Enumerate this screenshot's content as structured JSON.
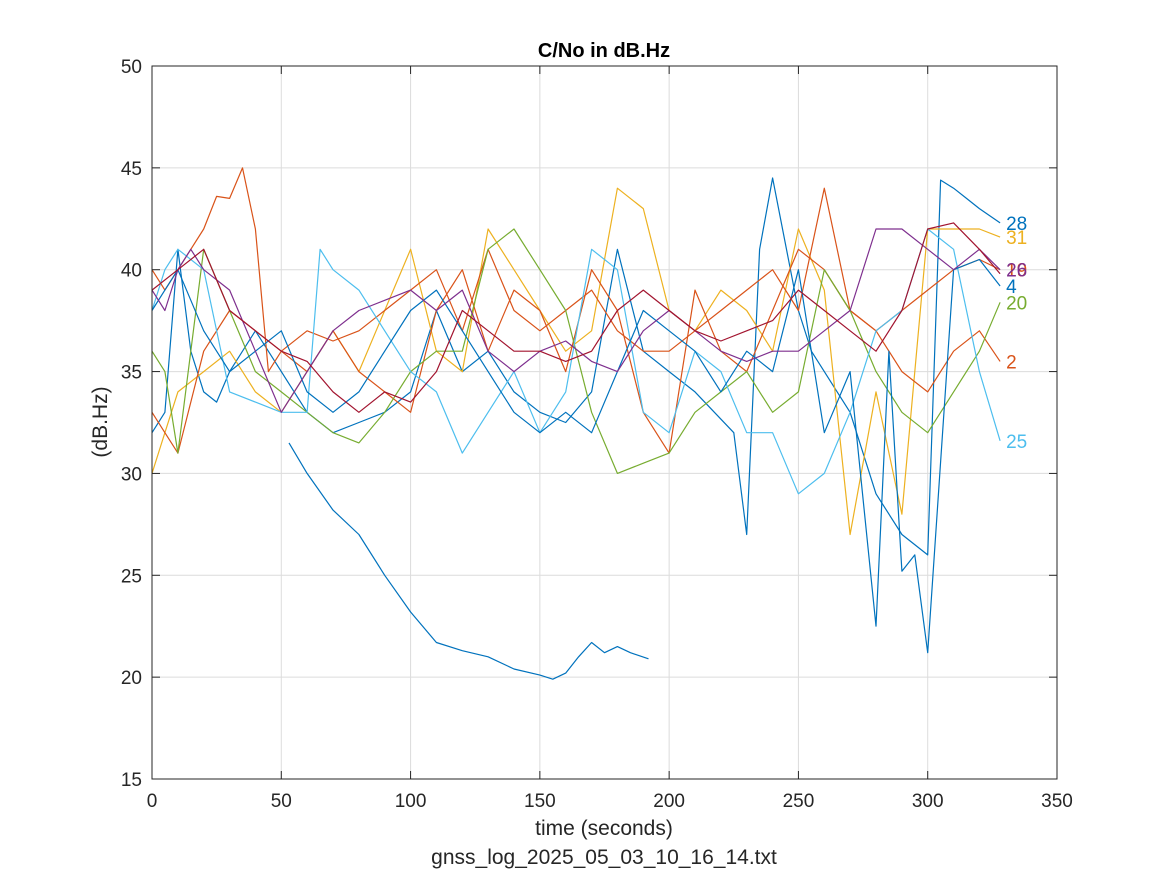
{
  "chart_data": {
    "type": "line",
    "title": "C/No in dB.Hz",
    "xlabel": "time (seconds)",
    "ylabel": "(dB.Hz)",
    "footer": "gnss_log_2025_05_03_10_16_14.txt",
    "xlim": [
      0,
      350
    ],
    "ylim": [
      15,
      50
    ],
    "xticks": [
      0,
      50,
      100,
      150,
      200,
      250,
      300,
      350
    ],
    "yticks": [
      15,
      20,
      25,
      30,
      35,
      40,
      45,
      50
    ],
    "xtick_labels": [
      "0",
      "50",
      "100",
      "150",
      "200",
      "250",
      "300",
      "350"
    ],
    "ytick_labels": [
      "15",
      "20",
      "25",
      "30",
      "35",
      "40",
      "45",
      "50"
    ],
    "grid": true,
    "series": [
      {
        "name": "28",
        "color": "#0072BD",
        "x": [
          0,
          5,
          10,
          15,
          20,
          25,
          30,
          40,
          50,
          60,
          70,
          80,
          90,
          100,
          110,
          120,
          130,
          140,
          150,
          160,
          170,
          180,
          190,
          200,
          210,
          225,
          230,
          235,
          240,
          250,
          255,
          260,
          270,
          280,
          290,
          300,
          305,
          310,
          315,
          320,
          328
        ],
        "y": [
          32,
          33,
          41,
          36,
          34,
          33.5,
          35,
          37,
          35,
          33,
          32,
          32.5,
          33,
          34,
          38,
          35,
          36,
          34,
          33,
          32.5,
          34,
          41,
          36,
          35,
          34,
          32,
          27,
          41,
          44.5,
          38,
          36,
          35,
          33,
          29,
          27,
          26,
          44.4,
          44,
          43.5,
          43,
          42.3
        ]
      },
      {
        "name": "",
        "color": "#0072BD",
        "x": [
          53,
          60,
          70,
          80,
          90,
          100,
          110,
          120,
          130,
          140,
          150,
          155,
          160,
          165,
          170,
          175,
          180,
          185,
          192
        ],
        "y": [
          31.5,
          30,
          28.2,
          27,
          25,
          23.2,
          21.7,
          21.3,
          21,
          20.4,
          20.1,
          19.9,
          20.2,
          21,
          21.7,
          21.2,
          21.5,
          21.2,
          20.9
        ]
      },
      {
        "name": "31",
        "color": "#EDB120",
        "x": [
          0,
          5,
          10,
          20,
          30,
          40,
          50,
          60,
          70,
          80,
          90,
          100,
          110,
          120,
          130,
          140,
          150,
          160,
          170,
          180,
          190,
          200,
          210,
          220,
          230,
          240,
          250,
          260,
          270,
          280,
          290,
          300,
          310,
          320,
          328
        ],
        "y": [
          30,
          32,
          34,
          35,
          36,
          34,
          33,
          35,
          37,
          35,
          38,
          41,
          36,
          35,
          42,
          40,
          38,
          36,
          37,
          44,
          43,
          38,
          37,
          39,
          38,
          36,
          42,
          39,
          27,
          34,
          28,
          42,
          42,
          42,
          41.6
        ]
      },
      {
        "name": "19",
        "color": "#D95319",
        "x": [
          0,
          5,
          10,
          15,
          20,
          25,
          30,
          35,
          40,
          45,
          50,
          60,
          70,
          80,
          90,
          100,
          110,
          120,
          130,
          140,
          150,
          160,
          170,
          180,
          190,
          200,
          210,
          220,
          230,
          240,
          250,
          260,
          270,
          280,
          290,
          300,
          310,
          320,
          328
        ],
        "y": [
          40,
          39,
          40,
          41,
          42,
          43.6,
          43.5,
          45,
          42,
          35,
          36,
          37,
          36.5,
          37,
          38,
          39,
          40,
          37,
          41,
          38,
          37,
          38,
          39,
          37,
          36,
          36,
          37,
          38,
          39,
          40,
          38,
          44,
          38,
          37,
          38,
          39,
          40,
          40.5,
          40
        ]
      },
      {
        "name": "2",
        "color": "#D95319",
        "x": [
          0,
          5,
          10,
          20,
          30,
          40,
          50,
          60,
          70,
          80,
          90,
          100,
          110,
          120,
          130,
          140,
          150,
          160,
          170,
          180,
          190,
          200,
          210,
          220,
          230,
          240,
          250,
          260,
          270,
          280,
          290,
          300,
          310,
          320,
          328
        ],
        "y": [
          33,
          32,
          31,
          36,
          38,
          37,
          36,
          35,
          37,
          35,
          34,
          33,
          38,
          40,
          36,
          39,
          38,
          35,
          40,
          38,
          33,
          31,
          39,
          36,
          35,
          38,
          41,
          40,
          38,
          37,
          35,
          34,
          36,
          37,
          35.5
        ]
      },
      {
        "name": "20",
        "color": "#77AC30",
        "x": [
          0,
          5,
          10,
          20,
          30,
          40,
          50,
          60,
          70,
          80,
          90,
          100,
          110,
          120,
          130,
          140,
          150,
          160,
          170,
          180,
          190,
          200,
          210,
          220,
          230,
          240,
          250,
          260,
          270,
          280,
          290,
          300,
          310,
          320,
          328
        ],
        "y": [
          36,
          35,
          31,
          41,
          38,
          35,
          34,
          33,
          32,
          31.5,
          33,
          35,
          36,
          36,
          41,
          42,
          40,
          38,
          33,
          30,
          30.5,
          31,
          33,
          34,
          35,
          33,
          34,
          40,
          38,
          35,
          33,
          32,
          34,
          36,
          38.4
        ]
      },
      {
        "name": "25",
        "color": "#4DBEEE",
        "x": [
          0,
          5,
          10,
          20,
          30,
          40,
          50,
          60,
          65,
          70,
          80,
          90,
          100,
          110,
          120,
          130,
          140,
          150,
          160,
          170,
          180,
          190,
          200,
          210,
          220,
          230,
          240,
          250,
          260,
          270,
          280,
          290,
          300,
          310,
          320,
          328
        ],
        "y": [
          38,
          40,
          41,
          40,
          34,
          33.5,
          33,
          33,
          41,
          40,
          39,
          37,
          35,
          34,
          31,
          33,
          35,
          32,
          34,
          41,
          40,
          33,
          32,
          36,
          35,
          32,
          32,
          29,
          30,
          33,
          37,
          38,
          42,
          41,
          35,
          31.6
        ]
      },
      {
        "name": "4",
        "color": "#0072BD",
        "x": [
          0,
          5,
          10,
          20,
          30,
          40,
          50,
          60,
          70,
          80,
          90,
          100,
          110,
          120,
          130,
          140,
          150,
          160,
          170,
          180,
          190,
          200,
          210,
          220,
          230,
          240,
          250,
          260,
          270,
          280,
          285,
          290,
          295,
          300,
          310,
          320,
          328
        ],
        "y": [
          38,
          39,
          40,
          37,
          35,
          36,
          37,
          34,
          33,
          34,
          36,
          38,
          39,
          37,
          35,
          33,
          32,
          33,
          32,
          35,
          38,
          37,
          36,
          34,
          36,
          35,
          40,
          32,
          35,
          22.5,
          36,
          25.2,
          26,
          21.2,
          40,
          40.5,
          39.2
        ]
      },
      {
        "name": "26",
        "color": "#7E2F8E",
        "x": [
          0,
          5,
          10,
          15,
          20,
          30,
          40,
          50,
          60,
          70,
          80,
          90,
          100,
          110,
          120,
          130,
          140,
          150,
          160,
          170,
          180,
          190,
          200,
          210,
          220,
          230,
          240,
          250,
          260,
          270,
          280,
          290,
          300,
          310,
          320,
          328
        ],
        "y": [
          39,
          38,
          40,
          41,
          40,
          39,
          36,
          33,
          35,
          37,
          38,
          38.5,
          39,
          38,
          39,
          36,
          35,
          36,
          36.5,
          35.5,
          35,
          37,
          38,
          37,
          36,
          35.5,
          36,
          36,
          37,
          38,
          42,
          42,
          41,
          40,
          41,
          40
        ]
      },
      {
        "name": "",
        "color": "#A2142F",
        "x": [
          0,
          10,
          20,
          30,
          40,
          50,
          60,
          70,
          80,
          90,
          100,
          110,
          120,
          130,
          140,
          150,
          160,
          170,
          180,
          190,
          200,
          210,
          220,
          230,
          240,
          250,
          260,
          270,
          280,
          290,
          300,
          310,
          320,
          328
        ],
        "y": [
          39,
          40,
          41,
          38,
          37,
          36,
          35.5,
          34,
          33,
          34,
          33.5,
          35,
          38,
          37,
          36,
          36,
          35.5,
          36,
          38,
          39,
          38,
          37,
          36.5,
          37,
          37.5,
          39,
          38,
          37,
          36,
          38,
          42,
          42.3,
          41,
          39.8
        ]
      }
    ]
  }
}
